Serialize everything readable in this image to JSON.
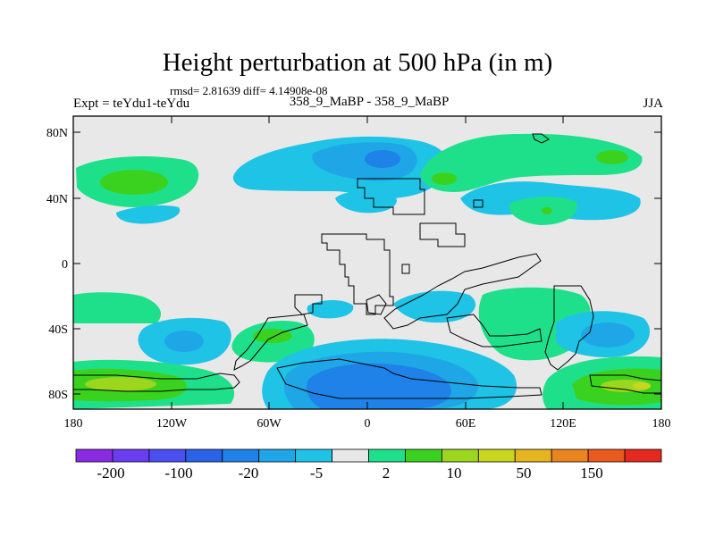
{
  "header": {
    "title": "Height perturbation at 500 hPa (in m)",
    "stats": "rmsd= 2.81639 diff= 4.14908e-08",
    "experiment": "Expt = teYdu1-teYdu",
    "center_label": "358_9_MaBP - 358_9_MaBP",
    "season": "JJA"
  },
  "map": {
    "y_ticks": [
      "80N",
      "40N",
      "0",
      "40S",
      "80S"
    ],
    "x_ticks": [
      "180",
      "120W",
      "60W",
      "0",
      "60E",
      "120E",
      "180"
    ]
  },
  "colorbar": {
    "colors": [
      "#8a2be2",
      "#6a3df0",
      "#4b4ff0",
      "#2a62e8",
      "#1e82e8",
      "#1fa6e6",
      "#1fc3e6",
      "#e8e8e8",
      "#1fe08a",
      "#3ad21e",
      "#9cd61e",
      "#c8d61e",
      "#e6b41e",
      "#ea841e",
      "#ea5a1e",
      "#e6281e"
    ],
    "labels": [
      "-200",
      "-100",
      "-20",
      "-5",
      "2",
      "10",
      "50",
      "150"
    ]
  },
  "fill_colors": {
    "background": "#e8e8e8",
    "light_blue": "#1fc3e6",
    "mid_blue": "#1fa6e6",
    "blue": "#1e82e8",
    "green": "#1fe08a",
    "lime": "#3ad21e",
    "yellow_green": "#9cd61e"
  }
}
